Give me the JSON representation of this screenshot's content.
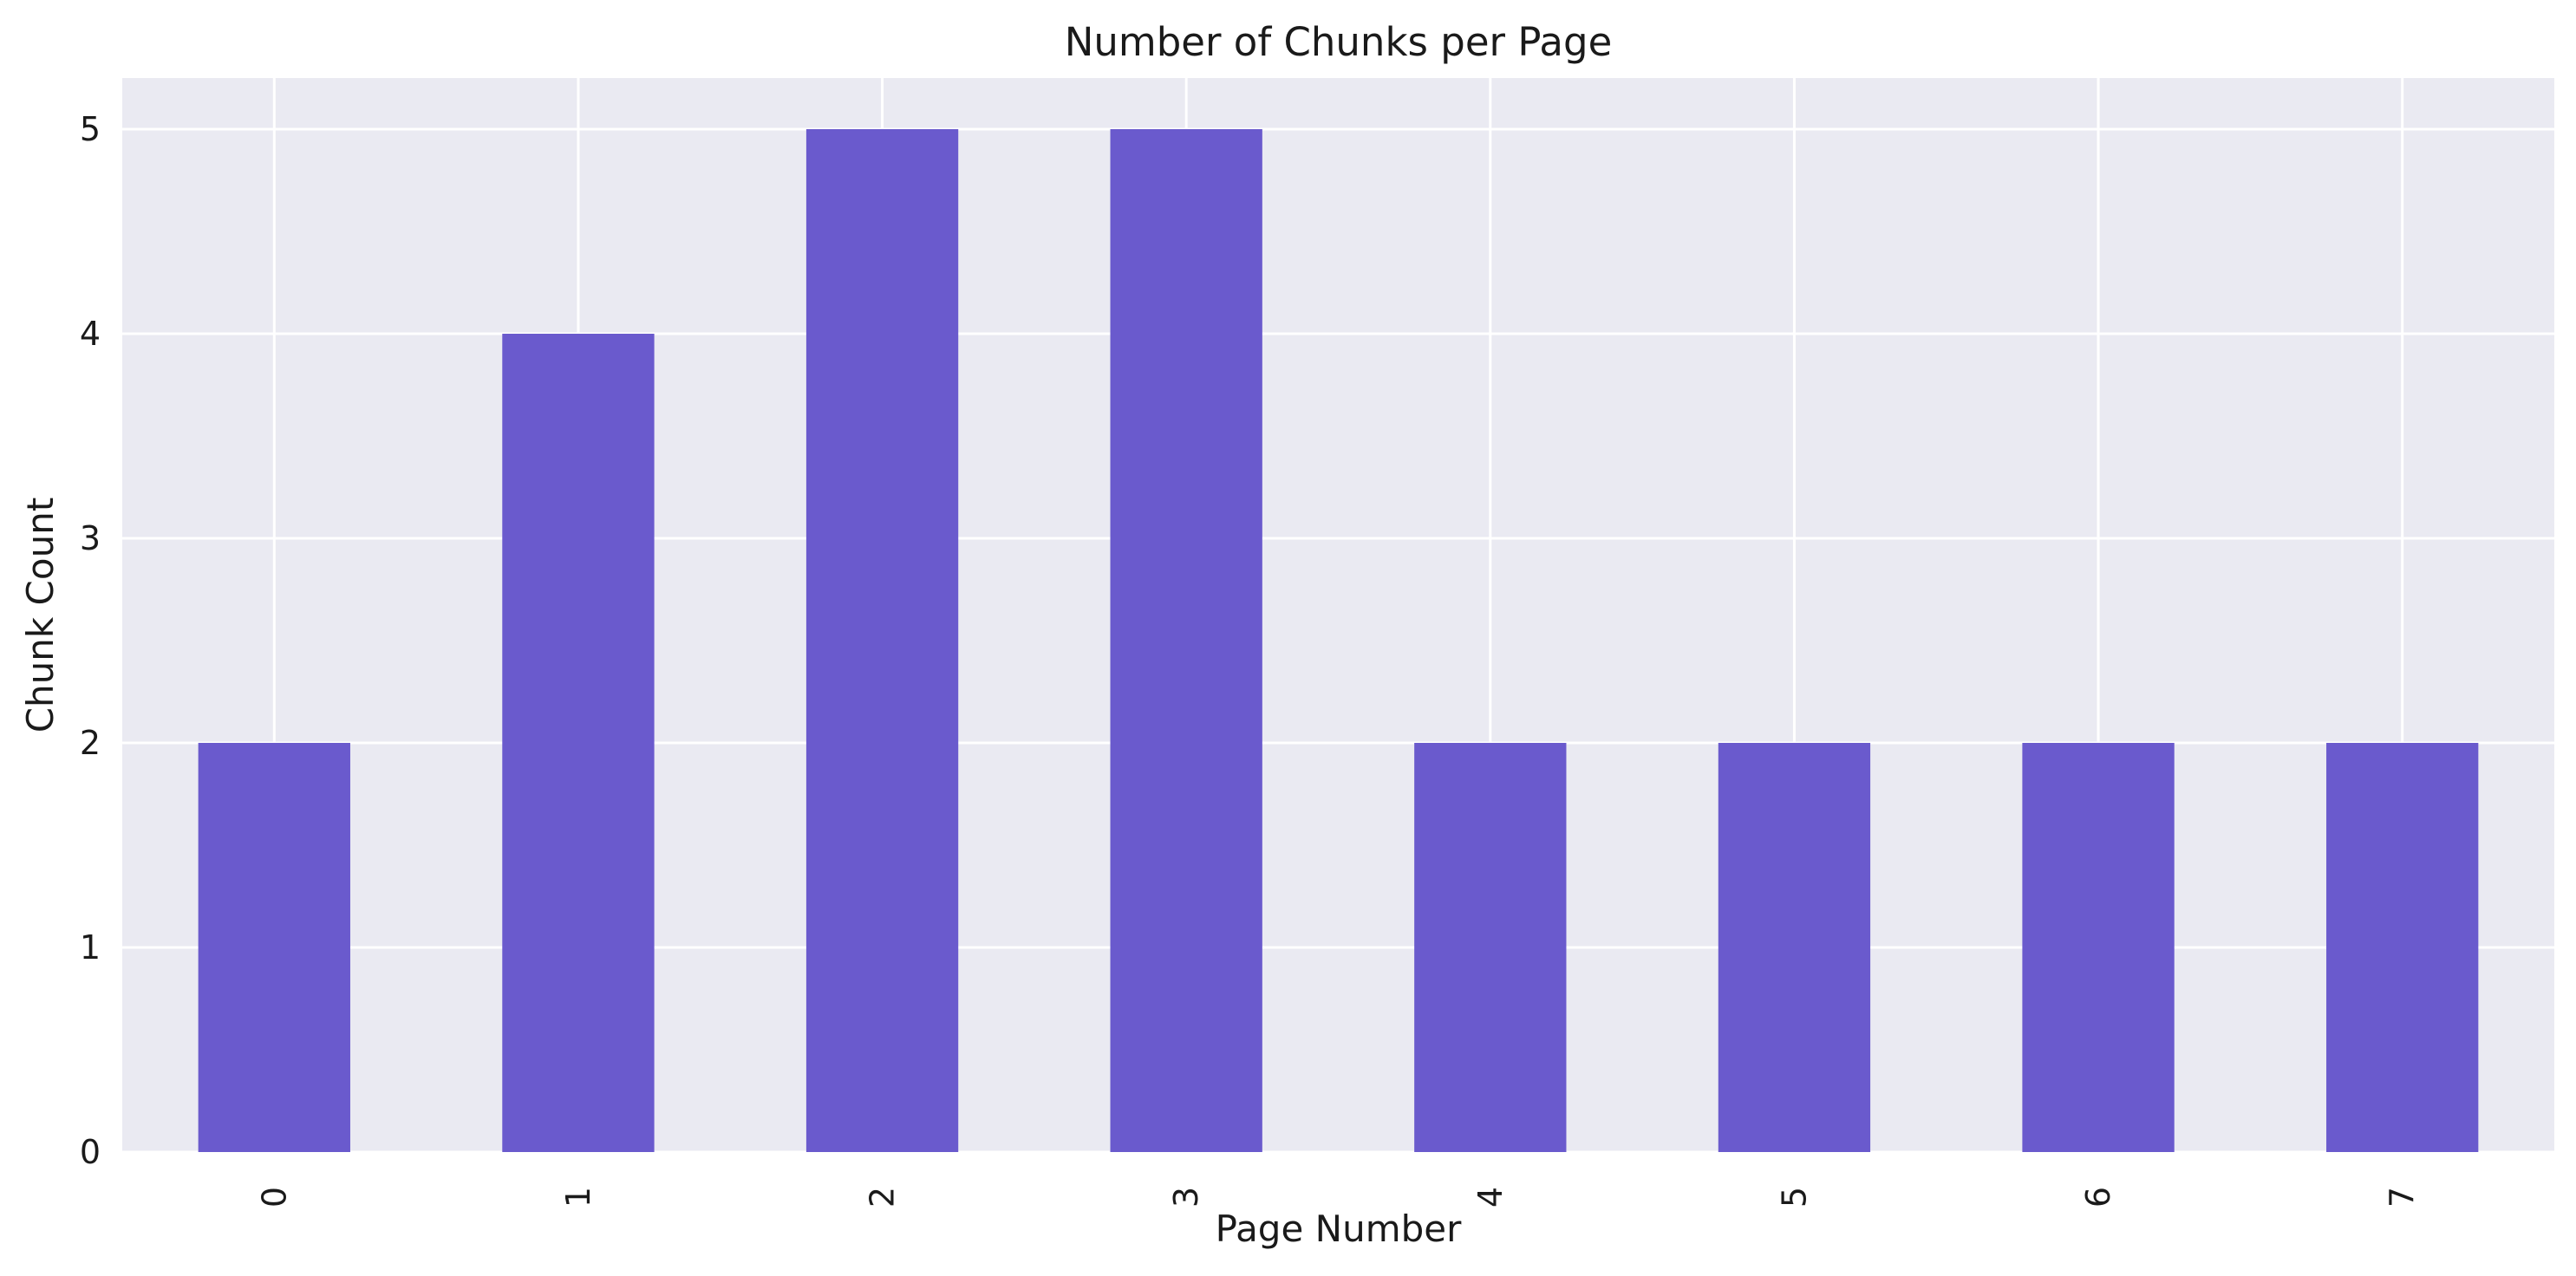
{
  "chart_data": {
    "type": "bar",
    "title": "Number of Chunks per Page",
    "xlabel": "Page Number",
    "ylabel": "Chunk Count",
    "categories": [
      "0",
      "1",
      "2",
      "3",
      "4",
      "5",
      "6",
      "7"
    ],
    "values": [
      2,
      4,
      5,
      5,
      2,
      2,
      2,
      2
    ],
    "ylim": [
      0,
      5.25
    ],
    "yticks": [
      0,
      1,
      2,
      3,
      4,
      5
    ],
    "grid": true,
    "x_tick_rotation": "vertical",
    "bar_color": "#6a5acd",
    "background_color": "#eaeaf2",
    "grid_color": "#ffffff"
  }
}
